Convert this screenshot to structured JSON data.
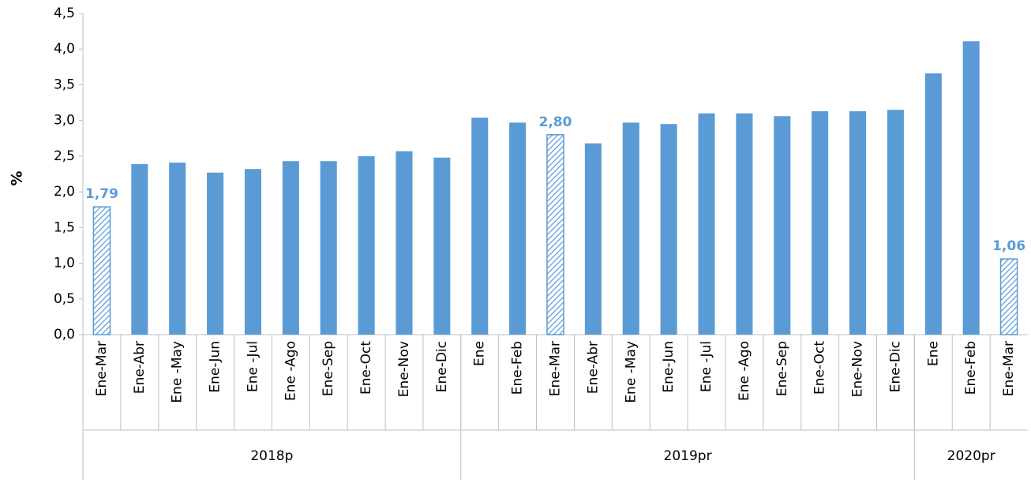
{
  "chart_data": {
    "type": "bar",
    "y_label": "%",
    "categories": [
      "Ene-Mar",
      "Ene-Abr",
      "Ene -May",
      "Ene-Jun",
      "Ene -Jul",
      "Ene -Ago",
      "Ene-Sep",
      "Ene-Oct",
      "Ene-Nov",
      "Ene-Dic",
      "Ene",
      "Ene-Feb",
      "Ene-Mar",
      "Ene-Abr",
      "Ene -May",
      "Ene-Jun",
      "Ene -Jul",
      "Ene -Ago",
      "Ene-Sep",
      "Ene-Oct",
      "Ene-Nov",
      "Ene-Dic",
      "Ene",
      "Ene-Feb",
      "Ene-Mar"
    ],
    "values": [
      1.79,
      2.39,
      2.41,
      2.27,
      2.32,
      2.43,
      2.43,
      2.5,
      2.57,
      2.48,
      3.04,
      2.97,
      2.8,
      2.68,
      2.97,
      2.95,
      3.1,
      3.1,
      3.06,
      3.13,
      3.13,
      3.15,
      3.66,
      4.11,
      1.06
    ],
    "value_labels": [
      "1,79",
      null,
      null,
      null,
      null,
      null,
      null,
      null,
      null,
      null,
      null,
      null,
      "2,80",
      null,
      null,
      null,
      null,
      null,
      null,
      null,
      null,
      null,
      null,
      null,
      "1,06"
    ],
    "groups": [
      {
        "name": "2018p",
        "span": 10
      },
      {
        "name": "2019pr",
        "span": 12
      },
      {
        "name": "2020pr",
        "span": 3
      }
    ],
    "color": "#5b9bd5",
    "label_color": "#5b9bd5",
    "ylim": [
      0,
      4.5
    ],
    "yticks": [
      {
        "value": 0,
        "label": "0,0"
      },
      {
        "value": 0.5,
        "label": "0,5"
      },
      {
        "value": 1,
        "label": "1,0"
      },
      {
        "value": 1.5,
        "label": "1,5"
      },
      {
        "value": 2,
        "label": "2,0"
      },
      {
        "value": 2.5,
        "label": "2,5"
      },
      {
        "value": 3,
        "label": "3,0"
      },
      {
        "value": 3.5,
        "label": "3,5"
      },
      {
        "value": 4,
        "label": "4,0"
      },
      {
        "value": 4.5,
        "label": "4,5"
      }
    ],
    "grid": false
  }
}
